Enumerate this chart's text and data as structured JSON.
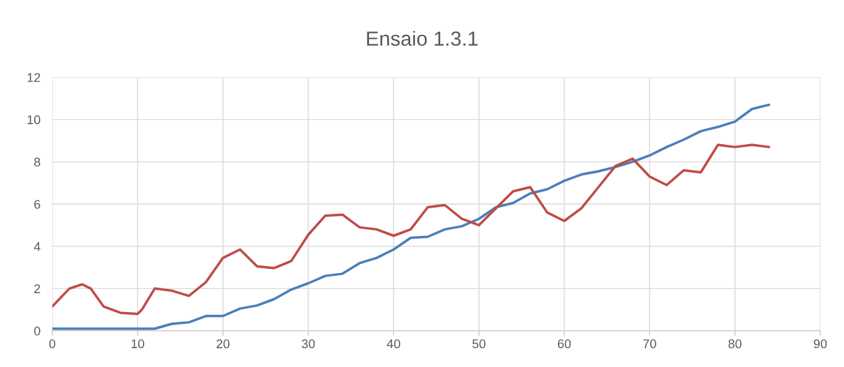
{
  "chart_data": {
    "type": "line",
    "title": "Ensaio 1.3.1",
    "x": [
      0,
      2,
      4,
      6,
      8,
      10,
      12,
      14,
      16,
      18,
      20,
      22,
      24,
      26,
      28,
      30,
      32,
      34,
      36,
      38,
      40,
      42,
      44,
      46,
      48,
      50,
      52,
      54,
      56,
      58,
      60,
      62,
      64,
      66,
      68,
      70,
      72,
      74,
      76,
      78,
      80,
      82,
      84
    ],
    "series": [
      {
        "color": "#4a7ebb",
        "values": [
          0.1,
          0.1,
          0.1,
          0.1,
          0.1,
          0.1,
          0.1,
          0.33,
          0.4,
          0.7,
          0.7,
          1.05,
          1.2,
          1.5,
          1.95,
          2.25,
          2.6,
          2.7,
          3.2,
          3.45,
          3.85,
          4.4,
          4.45,
          4.8,
          4.95,
          5.3,
          5.85,
          6.05,
          6.5,
          6.7,
          7.1,
          7.4,
          7.55,
          7.75,
          8.0,
          8.3,
          8.7,
          9.05,
          9.45,
          9.65,
          9.9,
          10.5,
          10.7
        ]
      },
      {
        "color": "#be4b48",
        "x": [
          0,
          2,
          3.5,
          4.5,
          6,
          8,
          10,
          10.5,
          12,
          14,
          16,
          18,
          20,
          22,
          24,
          26,
          28,
          30,
          32,
          34,
          36,
          38,
          40,
          42,
          44,
          46,
          48,
          50,
          52,
          54,
          56,
          58,
          60,
          62,
          64,
          66,
          68,
          70,
          72,
          74,
          76,
          78,
          80,
          82,
          84
        ],
        "values": [
          1.15,
          2.0,
          2.2,
          2.0,
          1.15,
          0.85,
          0.8,
          1.0,
          2.0,
          1.9,
          1.65,
          2.3,
          3.45,
          3.85,
          3.05,
          2.97,
          3.3,
          4.55,
          5.45,
          5.5,
          4.9,
          4.8,
          4.5,
          4.8,
          5.85,
          5.95,
          5.3,
          5.0,
          5.8,
          6.6,
          6.8,
          5.6,
          5.2,
          5.8,
          6.8,
          7.8,
          8.15,
          7.3,
          6.9,
          7.6,
          7.5,
          8.8,
          8.7,
          8.8,
          8.7
        ]
      }
    ],
    "xlim": [
      0,
      90
    ],
    "xticks": [
      0,
      10,
      20,
      30,
      40,
      50,
      60,
      70,
      80,
      90
    ],
    "ylim": [
      0,
      12
    ],
    "yticks": [
      0,
      2,
      4,
      6,
      8,
      10,
      12
    ],
    "grid": true,
    "marker": "none",
    "line_style": "solid"
  }
}
